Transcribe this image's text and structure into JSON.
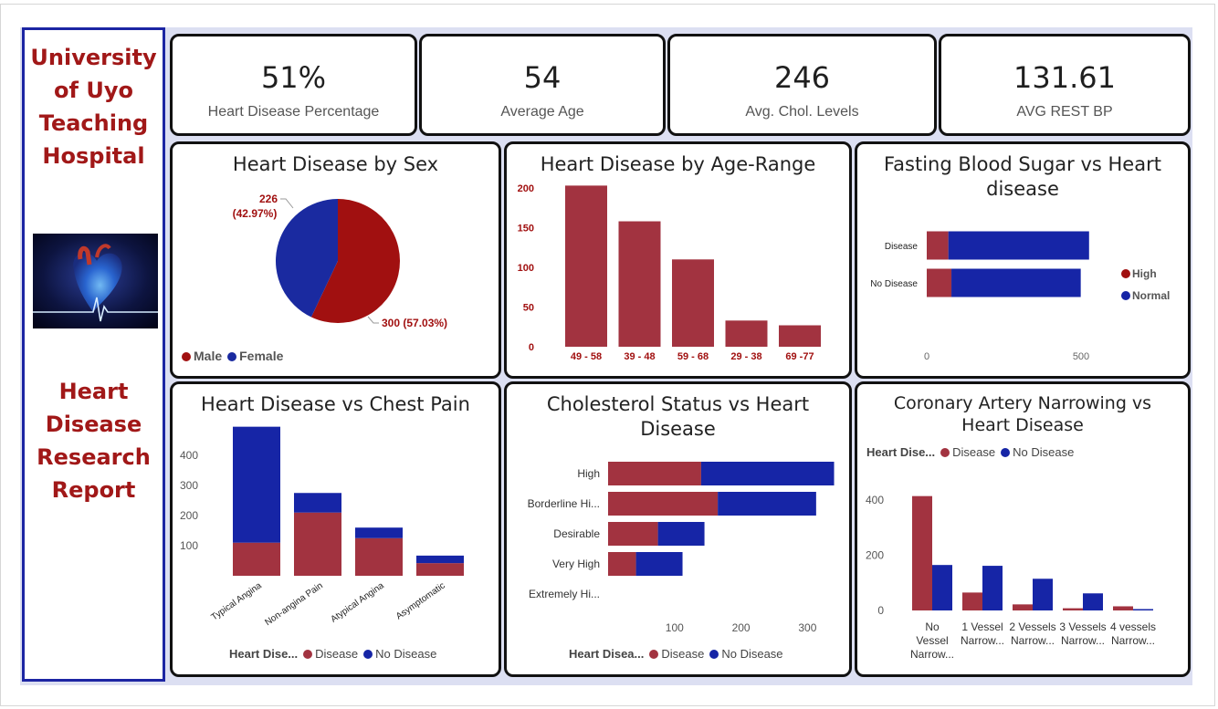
{
  "colors": {
    "disease": "#a23340",
    "no_disease": "#1625a6",
    "male": "#a11010",
    "female": "#1a2aa0",
    "title_red": "#a11818"
  },
  "sidebar": {
    "title_lines": [
      "University",
      "of Uyo",
      "Teaching",
      "Hospital"
    ],
    "subtitle_lines": [
      "Heart",
      "Disease",
      "Research",
      "Report"
    ],
    "image_icon": "heart-ecg-image"
  },
  "kpis": [
    {
      "value": "51%",
      "label": "Heart Disease Percentage"
    },
    {
      "value": "54",
      "label": "Average Age"
    },
    {
      "value": "246",
      "label": "Avg. Chol. Levels"
    },
    {
      "value": "131.61",
      "label": "AVG REST BP"
    }
  ],
  "chart_data": [
    {
      "type": "pie",
      "title": "Heart Disease by Sex",
      "categories": [
        "Male",
        "Female"
      ],
      "values": [
        300,
        226
      ],
      "data_labels": [
        "300 (57.03%)",
        "226 (42.97%)"
      ],
      "legend": "bottom-left"
    },
    {
      "type": "bar",
      "title": "Heart Disease by Age-Range",
      "categories": [
        "49 - 58",
        "39 - 48",
        "59 - 68",
        "29 - 38",
        "69 -77"
      ],
      "values": [
        203,
        158,
        110,
        33,
        27
      ],
      "ylim": [
        0,
        200
      ],
      "yticks": [
        0,
        50,
        100,
        150,
        200
      ]
    },
    {
      "type": "bar",
      "orientation": "horizontal",
      "stacked": true,
      "title": "Fasting Blood Sugar vs Heart disease",
      "categories": [
        "Disease",
        "No Disease"
      ],
      "series": [
        {
          "name": "High",
          "values": [
            70,
            80
          ]
        },
        {
          "name": "Normal",
          "values": [
            456,
            419
          ]
        }
      ],
      "xticks": [
        0,
        500
      ],
      "legend": "right"
    },
    {
      "type": "bar",
      "stacked": true,
      "title": "Heart Disease vs Chest Pain",
      "categories": [
        "Typical Angina",
        "Non-angina Pain",
        "Atypical Angina",
        "Asymptomatic"
      ],
      "series": [
        {
          "name": "Disease",
          "values": [
            110,
            210,
            125,
            42
          ]
        },
        {
          "name": "No Disease",
          "values": [
            385,
            65,
            35,
            25
          ]
        }
      ],
      "yticks": [
        100,
        200,
        300,
        400
      ],
      "legend_title": "Heart Dise...",
      "legend": "bottom"
    },
    {
      "type": "bar",
      "orientation": "horizontal",
      "stacked": true,
      "title": "Cholesterol Status vs Heart Disease",
      "categories": [
        "High",
        "Borderline Hi...",
        "Desirable",
        "Very High",
        "Extremely Hi..."
      ],
      "series": [
        {
          "name": "Disease",
          "values": [
            140,
            165,
            75,
            42,
            0
          ]
        },
        {
          "name": "No Disease",
          "values": [
            200,
            148,
            70,
            70,
            0
          ]
        }
      ],
      "xticks": [
        100,
        200,
        300
      ],
      "legend_title": "Heart Disea...",
      "legend": "bottom"
    },
    {
      "type": "bar",
      "title": "Coronary Artery Narrowing vs Heart Disease",
      "categories": [
        "No Vessel Narrow...",
        "1 Vessel Narrow...",
        "2 Vessels Narrow...",
        "3 Vessels Narrow...",
        "4 vessels Narrow..."
      ],
      "category_lines": [
        [
          "No",
          "Vessel",
          "Narrow..."
        ],
        [
          "1 Vessel",
          "Narrow..."
        ],
        [
          "2 Vessels",
          "Narrow..."
        ],
        [
          "3 Vessels",
          "Narrow..."
        ],
        [
          "4 vessels",
          "Narrow..."
        ]
      ],
      "series": [
        {
          "name": "Disease",
          "values": [
            415,
            65,
            22,
            8,
            15
          ]
        },
        {
          "name": "No Disease",
          "values": [
            165,
            162,
            115,
            62,
            5
          ]
        }
      ],
      "yticks": [
        0,
        200,
        400
      ],
      "legend_title": "Heart Dise...",
      "legend": "top"
    }
  ]
}
